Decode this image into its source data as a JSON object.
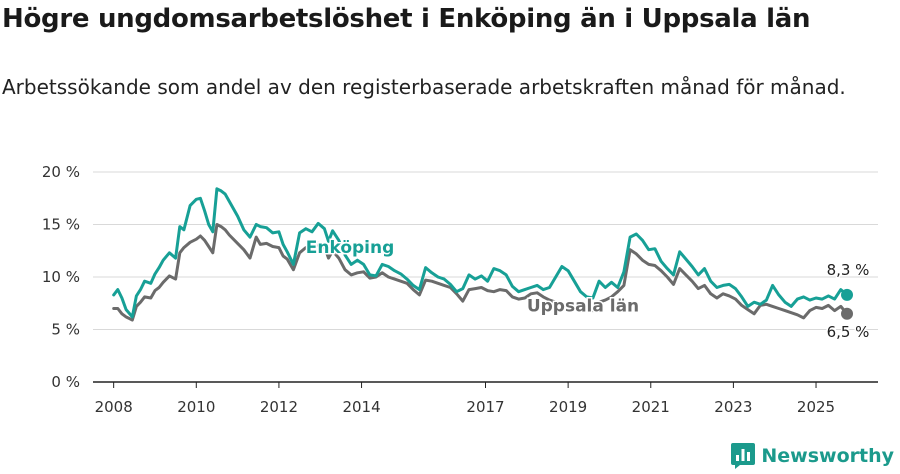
{
  "header": {
    "title": "Högre ungdomsarbetslöshet i Enköping än i Uppsala län",
    "subtitle": "Arbetssökande som andel av den registerbaserade arbetskraften månad för månad."
  },
  "brand": {
    "name": "Newsworthy",
    "icon": "newsworthy-logo-icon"
  },
  "colors": {
    "enkoping": "#17a096",
    "uppsala": "#6b6b6b",
    "grid": "#d9d9d9",
    "axis": "#222222"
  },
  "chart_data": {
    "type": "line",
    "title": "Högre ungdomsarbetslöshet i Enköping än i Uppsala län",
    "xlabel": "",
    "ylabel": "",
    "ylim": [
      0,
      20
    ],
    "y_ticks": [
      0,
      5,
      10,
      15,
      20
    ],
    "y_tick_labels": [
      "0 %",
      "5 %",
      "10 %",
      "15 %",
      "20 %"
    ],
    "x_range": [
      2007.5,
      2026.5
    ],
    "x_ticks": [
      2008,
      2010,
      2012,
      2014,
      2017,
      2019,
      2021,
      2023,
      2025
    ],
    "x_tick_labels": [
      "2008",
      "2010",
      "2012",
      "2014",
      "2017",
      "2019",
      "2021",
      "2023",
      "2025"
    ],
    "series": [
      {
        "name": "Enköping",
        "label": "Enköping",
        "end_label": "8,3 %",
        "x": [
          2008.0,
          2008.1,
          2008.2,
          2008.3,
          2008.45,
          2008.55,
          2008.65,
          2008.75,
          2008.9,
          2009.0,
          2009.1,
          2009.2,
          2009.35,
          2009.5,
          2009.6,
          2009.7,
          2009.85,
          2010.0,
          2010.1,
          2010.2,
          2010.3,
          2010.4,
          2010.5,
          2010.6,
          2010.7,
          2010.8,
          2011.0,
          2011.15,
          2011.3,
          2011.45,
          2011.55,
          2011.7,
          2011.85,
          2012.0,
          2012.1,
          2012.2,
          2012.35,
          2012.5,
          2012.65,
          2012.8,
          2012.95,
          2013.1,
          2013.2,
          2013.3,
          2013.45,
          2013.6,
          2013.75,
          2013.9,
          2014.05,
          2014.2,
          2014.35,
          2014.5,
          2014.65,
          2014.8,
          2014.95,
          2015.1,
          2015.25,
          2015.4,
          2015.55,
          2015.7,
          2015.85,
          2016.0,
          2016.15,
          2016.3,
          2016.45,
          2016.6,
          2016.75,
          2016.9,
          2017.05,
          2017.2,
          2017.35,
          2017.5,
          2017.65,
          2017.8,
          2017.95,
          2018.1,
          2018.25,
          2018.4,
          2018.55,
          2018.7,
          2018.85,
          2019.0,
          2019.15,
          2019.3,
          2019.45,
          2019.6,
          2019.75,
          2019.9,
          2020.05,
          2020.2,
          2020.35,
          2020.5,
          2020.65,
          2020.8,
          2020.95,
          2021.1,
          2021.25,
          2021.4,
          2021.55,
          2021.7,
          2021.85,
          2022.0,
          2022.15,
          2022.3,
          2022.45,
          2022.6,
          2022.75,
          2022.9,
          2023.05,
          2023.2,
          2023.35,
          2023.5,
          2023.65,
          2023.8,
          2023.95,
          2024.1,
          2024.25,
          2024.4,
          2024.55,
          2024.7,
          2024.85,
          2025.0,
          2025.15,
          2025.3,
          2025.45,
          2025.6,
          2025.75
        ],
        "y": [
          8.3,
          8.8,
          8.0,
          6.9,
          6.2,
          8.2,
          8.8,
          9.6,
          9.4,
          10.3,
          10.9,
          11.6,
          12.3,
          11.8,
          14.8,
          14.5,
          16.8,
          17.4,
          17.5,
          16.3,
          15.0,
          14.3,
          18.4,
          18.2,
          17.9,
          17.2,
          15.8,
          14.5,
          13.8,
          15.0,
          14.8,
          14.7,
          14.2,
          14.3,
          13.1,
          12.4,
          11.2,
          14.2,
          14.6,
          14.3,
          15.1,
          14.6,
          13.4,
          14.4,
          13.5,
          12.1,
          11.2,
          11.6,
          11.2,
          10.2,
          10.1,
          11.2,
          11.0,
          10.6,
          10.3,
          9.8,
          9.2,
          8.8,
          10.9,
          10.4,
          10.0,
          9.8,
          9.3,
          8.6,
          8.9,
          10.2,
          9.8,
          10.1,
          9.6,
          10.8,
          10.6,
          10.2,
          9.1,
          8.6,
          8.8,
          9.0,
          9.2,
          8.8,
          9.0,
          10.0,
          11.0,
          10.6,
          9.6,
          8.6,
          8.1,
          8.0,
          9.6,
          9.0,
          9.5,
          9.0,
          10.5,
          13.8,
          14.1,
          13.5,
          12.6,
          12.7,
          11.5,
          10.8,
          10.2,
          12.4,
          11.7,
          11.0,
          10.2,
          10.8,
          9.6,
          9.0,
          9.2,
          9.3,
          8.9,
          8.1,
          7.2,
          7.6,
          7.4,
          7.8,
          9.2,
          8.3,
          7.6,
          7.2,
          7.9,
          8.1,
          7.8,
          8.0,
          7.9,
          8.2,
          7.9,
          8.8,
          8.3
        ]
      },
      {
        "name": "Uppsala län",
        "label": "Uppsala län",
        "end_label": "6,5 %",
        "x": [
          2008.0,
          2008.1,
          2008.2,
          2008.3,
          2008.45,
          2008.55,
          2008.65,
          2008.75,
          2008.9,
          2009.0,
          2009.1,
          2009.2,
          2009.35,
          2009.5,
          2009.6,
          2009.7,
          2009.85,
          2010.0,
          2010.1,
          2010.2,
          2010.3,
          2010.4,
          2010.5,
          2010.6,
          2010.7,
          2010.8,
          2011.0,
          2011.15,
          2011.3,
          2011.45,
          2011.55,
          2011.7,
          2011.85,
          2012.0,
          2012.1,
          2012.2,
          2012.35,
          2012.5,
          2012.65,
          2012.8,
          2012.95,
          2013.1,
          2013.2,
          2013.3,
          2013.45,
          2013.6,
          2013.75,
          2013.9,
          2014.05,
          2014.2,
          2014.35,
          2014.5,
          2014.65,
          2014.8,
          2014.95,
          2015.1,
          2015.25,
          2015.4,
          2015.55,
          2015.7,
          2015.85,
          2016.0,
          2016.15,
          2016.3,
          2016.45,
          2016.6,
          2016.75,
          2016.9,
          2017.05,
          2017.2,
          2017.35,
          2017.5,
          2017.65,
          2017.8,
          2017.95,
          2018.1,
          2018.25,
          2018.4,
          2018.55,
          2018.7,
          2018.85,
          2019.0,
          2019.15,
          2019.3,
          2019.45,
          2019.6,
          2019.75,
          2019.9,
          2020.05,
          2020.2,
          2020.35,
          2020.5,
          2020.65,
          2020.8,
          2020.95,
          2021.1,
          2021.25,
          2021.4,
          2021.55,
          2021.7,
          2021.85,
          2022.0,
          2022.15,
          2022.3,
          2022.45,
          2022.6,
          2022.75,
          2022.9,
          2023.05,
          2023.2,
          2023.35,
          2023.5,
          2023.65,
          2023.8,
          2023.95,
          2024.1,
          2024.25,
          2024.4,
          2024.55,
          2024.7,
          2024.85,
          2025.0,
          2025.15,
          2025.3,
          2025.45,
          2025.6,
          2025.75
        ],
        "y": [
          7.0,
          7.0,
          6.5,
          6.2,
          5.9,
          7.2,
          7.6,
          8.1,
          8.0,
          8.7,
          9.0,
          9.5,
          10.1,
          9.8,
          12.3,
          12.8,
          13.3,
          13.6,
          13.9,
          13.5,
          12.9,
          12.3,
          15.0,
          14.8,
          14.5,
          14.0,
          13.2,
          12.6,
          11.8,
          13.8,
          13.1,
          13.2,
          12.9,
          12.8,
          12.0,
          11.7,
          10.7,
          12.3,
          12.8,
          12.6,
          13.2,
          12.9,
          11.8,
          12.5,
          11.8,
          10.7,
          10.2,
          10.4,
          10.5,
          9.9,
          10.0,
          10.4,
          10.0,
          9.8,
          9.6,
          9.4,
          8.8,
          8.3,
          9.7,
          9.6,
          9.4,
          9.2,
          9.0,
          8.4,
          7.7,
          8.8,
          8.9,
          9.0,
          8.7,
          8.6,
          8.8,
          8.7,
          8.1,
          7.9,
          8.0,
          8.4,
          8.5,
          8.1,
          7.8,
          7.6,
          7.4,
          7.2,
          7.0,
          7.0,
          6.9,
          6.8,
          7.6,
          7.8,
          8.1,
          8.6,
          9.2,
          12.6,
          12.2,
          11.6,
          11.2,
          11.1,
          10.6,
          10.0,
          9.3,
          10.8,
          10.2,
          9.6,
          8.9,
          9.2,
          8.4,
          8.0,
          8.4,
          8.2,
          7.9,
          7.3,
          6.9,
          6.5,
          7.3,
          7.4,
          7.2,
          7.0,
          6.8,
          6.6,
          6.4,
          6.1,
          6.8,
          7.1,
          7.0,
          7.3,
          6.8,
          7.2,
          6.5
        ]
      }
    ]
  }
}
